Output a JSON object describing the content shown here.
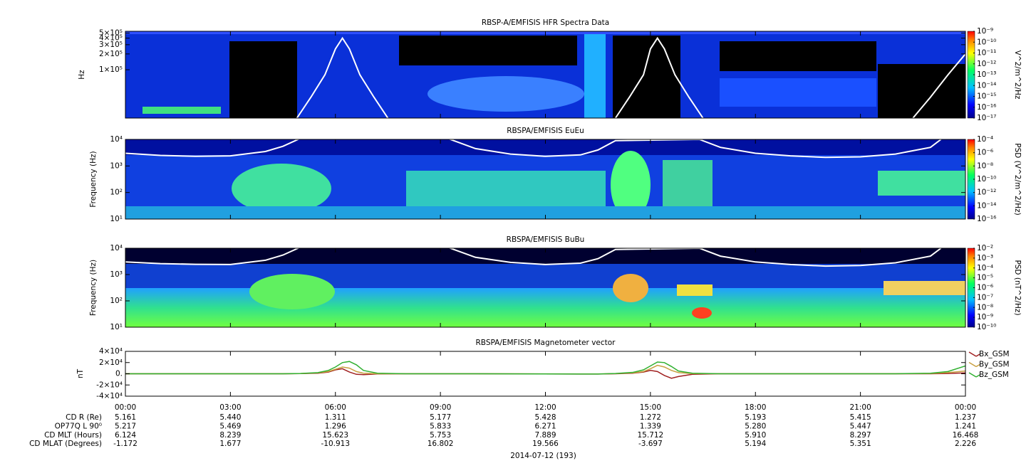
{
  "chart_data": [
    {
      "type": "spectrogram",
      "title": "RBSP-A/EMFISIS  HFR Spectra Data",
      "ylabel": "Hz",
      "yscale": "log",
      "xlim": [
        0,
        24
      ],
      "ylim": [
        12000,
        540000
      ],
      "yticks": [
        {
          "value": 100000,
          "label": "1×10⁵"
        },
        {
          "value": 200000,
          "label": "2×10⁵"
        },
        {
          "value": 300000,
          "label": "3×10⁵"
        },
        {
          "value": 400000,
          "label": "4×10⁵"
        },
        {
          "value": 500000,
          "label": "5×10⁵"
        }
      ],
      "colorbar": {
        "label": "V^2/m^2/Hz",
        "scale": "log",
        "lim": [
          1e-17,
          1e-09
        ],
        "ticks": [
          {
            "value": 1e-09,
            "label": "10⁻⁹"
          },
          {
            "value": 1e-10,
            "label": "10⁻¹⁰"
          },
          {
            "value": 1e-11,
            "label": "10⁻¹¹"
          },
          {
            "value": 1e-12,
            "label": "10⁻¹²"
          },
          {
            "value": 1e-13,
            "label": "10⁻¹³"
          },
          {
            "value": 1e-14,
            "label": "10⁻¹⁴"
          },
          {
            "value": 1e-15,
            "label": "10⁻¹⁵"
          },
          {
            "value": 1e-16,
            "label": "10⁻¹⁶"
          },
          {
            "value": 1e-17,
            "label": "10⁻¹⁷"
          }
        ]
      },
      "overlay": {
        "color": "#ffffff",
        "x": [
          4.9,
          5.3,
          5.7,
          6.0,
          6.2,
          6.4,
          6.7,
          7.1,
          7.5,
          null,
          14.0,
          14.4,
          14.8,
          15.0,
          15.2,
          15.4,
          15.7,
          16.1,
          16.5,
          null,
          22.5,
          23.0,
          23.5,
          24.0
        ],
        "values": [
          12000,
          30000,
          80000,
          250000,
          400000,
          250000,
          80000,
          30000,
          12000,
          null,
          12000,
          30000,
          80000,
          250000,
          400000,
          250000,
          80000,
          30000,
          12000,
          null,
          12000,
          30000,
          80000,
          200000
        ]
      }
    },
    {
      "type": "spectrogram",
      "title": "RBSPA/EMFISIS  EuEu",
      "ylabel": "Frequency (Hz)",
      "yscale": "log",
      "xlim": [
        0,
        24
      ],
      "ylim": [
        10,
        10000
      ],
      "yticks": [
        {
          "value": 10,
          "label": "10¹"
        },
        {
          "value": 100,
          "label": "10²"
        },
        {
          "value": 1000,
          "label": "10³"
        },
        {
          "value": 10000,
          "label": "10⁴"
        }
      ],
      "colorbar": {
        "label": "PSD (V^2/m^2/Hz)",
        "scale": "log",
        "lim": [
          1e-16,
          0.0001
        ],
        "ticks": [
          {
            "value": 0.0001,
            "label": "10⁻⁴"
          },
          {
            "value": 1e-06,
            "label": "10⁻⁶"
          },
          {
            "value": 1e-08,
            "label": "10⁻⁸"
          },
          {
            "value": 1e-10,
            "label": "10⁻¹⁰"
          },
          {
            "value": 1e-12,
            "label": "10⁻¹²"
          },
          {
            "value": 1e-14,
            "label": "10⁻¹⁴"
          },
          {
            "value": 1e-16,
            "label": "10⁻¹⁶"
          }
        ]
      },
      "overlay": {
        "color": "#ffffff",
        "x": [
          0,
          1,
          2,
          3,
          4,
          4.5,
          5,
          9.2,
          10,
          11,
          12,
          13,
          13.5,
          14,
          16.4,
          17,
          18,
          19,
          20,
          21,
          22,
          23,
          23.3
        ],
        "values": [
          3000,
          2500,
          2300,
          2400,
          3500,
          5500,
          11000,
          11000,
          4500,
          2800,
          2300,
          2600,
          4000,
          9000,
          10000,
          5000,
          3000,
          2400,
          2100,
          2200,
          2800,
          5000,
          10000
        ]
      }
    },
    {
      "type": "spectrogram",
      "title": "RBSPA/EMFISIS  BuBu",
      "ylabel": "Frequency (Hz)",
      "yscale": "log",
      "xlim": [
        0,
        24
      ],
      "ylim": [
        10,
        10000
      ],
      "yticks": [
        {
          "value": 10,
          "label": "10¹"
        },
        {
          "value": 100,
          "label": "10²"
        },
        {
          "value": 1000,
          "label": "10³"
        },
        {
          "value": 10000,
          "label": "10⁴"
        }
      ],
      "colorbar": {
        "label": "PSD (nT^2/Hz)",
        "scale": "log",
        "lim": [
          1e-10,
          0.01
        ],
        "ticks": [
          {
            "value": 0.01,
            "label": "10⁻²"
          },
          {
            "value": 0.001,
            "label": "10⁻³"
          },
          {
            "value": 0.0001,
            "label": "10⁻⁴"
          },
          {
            "value": 1e-05,
            "label": "10⁻⁵"
          },
          {
            "value": 1e-06,
            "label": "10⁻⁶"
          },
          {
            "value": 1e-07,
            "label": "10⁻⁷"
          },
          {
            "value": 1e-08,
            "label": "10⁻⁸"
          },
          {
            "value": 1e-09,
            "label": "10⁻⁹"
          },
          {
            "value": 1e-10,
            "label": "10⁻¹⁰"
          }
        ]
      },
      "overlay": {
        "color": "#ffffff",
        "x": [
          0,
          1,
          2,
          3,
          4,
          4.5,
          5,
          9.2,
          10,
          11,
          12,
          13,
          13.5,
          14,
          16.4,
          17,
          18,
          19,
          20,
          21,
          22,
          23,
          23.3
        ],
        "values": [
          3000,
          2600,
          2450,
          2400,
          3500,
          5500,
          11000,
          11000,
          4500,
          2900,
          2400,
          2700,
          4000,
          9000,
          10000,
          5000,
          3000,
          2400,
          2100,
          2200,
          2800,
          5000,
          10000
        ]
      }
    },
    {
      "type": "line",
      "title": "RBSPA/EMFISIS  Magnetometer vector",
      "ylabel": "nT",
      "xlim": [
        0,
        24
      ],
      "ylim": [
        -40000,
        40000
      ],
      "yticks": [
        {
          "value": 40000,
          "label": "4×10⁴"
        },
        {
          "value": 20000,
          "label": "2×10⁴"
        },
        {
          "value": 0,
          "label": "0."
        },
        {
          "value": -20000,
          "label": "-2×10⁴"
        },
        {
          "value": -40000,
          "label": "-4×10⁴"
        }
      ],
      "xticks": [
        {
          "value": 0,
          "label": "00:00"
        },
        {
          "value": 3,
          "label": "03:00"
        },
        {
          "value": 6,
          "label": "06:00"
        },
        {
          "value": 9,
          "label": "09:00"
        },
        {
          "value": 12,
          "label": "12:00"
        },
        {
          "value": 15,
          "label": "15:00"
        },
        {
          "value": 18,
          "label": "18:00"
        },
        {
          "value": 21,
          "label": "21:00"
        },
        {
          "value": 24,
          "label": "00:00"
        }
      ],
      "xlabel": "2014-07-12 (193)",
      "legend": "right",
      "x": [
        0,
        3,
        4.5,
        5,
        5.5,
        5.8,
        6,
        6.2,
        6.4,
        6.6,
        6.8,
        7.2,
        8,
        10,
        13,
        13.5,
        14,
        14.5,
        14.8,
        15,
        15.2,
        15.4,
        15.6,
        15.8,
        16.2,
        17,
        20,
        22,
        23,
        23.5,
        24
      ],
      "series": [
        {
          "name": "Bx_GSM",
          "color": "#a02020",
          "values": [
            0,
            0,
            0,
            200,
            1000,
            3000,
            7000,
            9000,
            3000,
            -1000,
            -1500,
            -300,
            0,
            0,
            -500,
            -500,
            0,
            1000,
            3000,
            6000,
            4000,
            -3000,
            -8000,
            -5000,
            -1000,
            0,
            0,
            0,
            0,
            500,
            1500
          ]
        },
        {
          "name": "By_GSM",
          "color": "#c8a040",
          "values": [
            0,
            0,
            0,
            300,
            1500,
            4000,
            8000,
            12000,
            10000,
            4000,
            1000,
            0,
            0,
            0,
            -300,
            -300,
            300,
            1500,
            4000,
            9000,
            15000,
            12000,
            6000,
            2000,
            300,
            0,
            0,
            0,
            500,
            2000,
            5000
          ]
        },
        {
          "name": "Bz_GSM",
          "color": "#30b030",
          "values": [
            0,
            0,
            0,
            500,
            2000,
            6000,
            12000,
            20000,
            22000,
            16000,
            6000,
            1000,
            0,
            0,
            -500,
            -500,
            500,
            2500,
            7000,
            14000,
            21000,
            20000,
            13000,
            5000,
            1000,
            0,
            0,
            0,
            1000,
            4000,
            14000
          ]
        }
      ],
      "ephemeris": [
        {
          "label": "CD R (Re)",
          "values": [
            "5.161",
            "5.440",
            "1.311",
            "5.177",
            "5.428",
            "1.272",
            "5.193",
            "5.415",
            "1.237"
          ]
        },
        {
          "label": "OP77Q L 90⁰",
          "values": [
            "5.217",
            "5.469",
            "1.296",
            "5.833",
            "6.271",
            "1.339",
            "5.280",
            "5.447",
            "1.241"
          ]
        },
        {
          "label": "CD MLT (Hours)",
          "values": [
            "6.124",
            "8.239",
            "15.623",
            "5.753",
            "7.889",
            "15.712",
            "5.910",
            "8.297",
            "16.468"
          ]
        },
        {
          "label": "CD MLAT (Degrees)",
          "values": [
            "-1.172",
            "1.677",
            "-10.913",
            "16.802",
            "19.566",
            "-3.697",
            "5.194",
            "5.351",
            "2.226"
          ]
        }
      ]
    }
  ]
}
